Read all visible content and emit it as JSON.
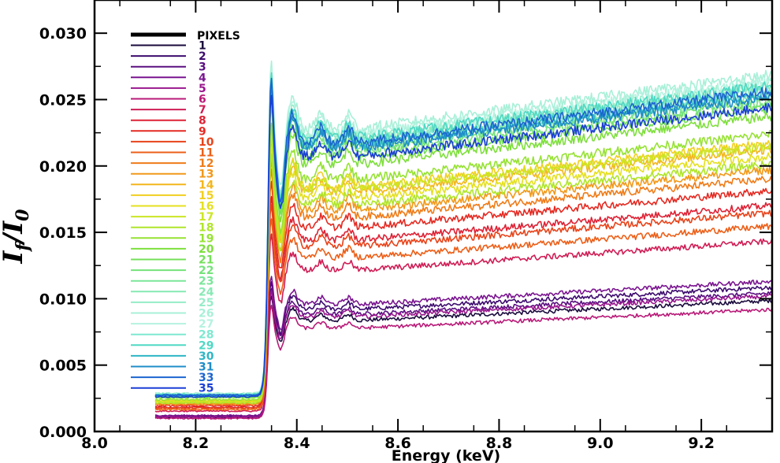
{
  "chart_data": {
    "type": "line",
    "title": "",
    "xlabel": "Energy (keV)",
    "ylabel": "If/I0",
    "ylabel_parts": {
      "base1": "I",
      "sub1": "f",
      "slash": "/",
      "base2": "I",
      "sub2": "0"
    },
    "xlim": [
      8.0,
      9.34
    ],
    "ylim": [
      0.0,
      0.0325
    ],
    "xticks": [
      8.0,
      8.2,
      8.4,
      8.6,
      8.8,
      9.0,
      9.2
    ],
    "xtick_labels": [
      "8.0",
      "8.2",
      "8.4",
      "8.6",
      "8.8",
      "9.0",
      "9.2"
    ],
    "yticks": [
      0.0,
      0.005,
      0.01,
      0.015,
      0.02,
      0.025,
      0.03
    ],
    "ytick_labels": [
      "0.000",
      "0.005",
      "0.010",
      "0.015",
      "0.020",
      "0.025",
      "0.030"
    ],
    "legend": {
      "title": "PIXELS",
      "position": "top-left",
      "entries": [
        {
          "label": "1",
          "color": "#1a0a3c"
        },
        {
          "label": "2",
          "color": "#3d0b6e"
        },
        {
          "label": "3",
          "color": "#5a1080"
        },
        {
          "label": "4",
          "color": "#7a1590"
        },
        {
          "label": "5",
          "color": "#99178e"
        },
        {
          "label": "6",
          "color": "#b81a78"
        },
        {
          "label": "7",
          "color": "#cf1d55"
        },
        {
          "label": "8",
          "color": "#dd2235"
        },
        {
          "label": "9",
          "color": "#e42a22"
        },
        {
          "label": "10",
          "color": "#e8431a"
        },
        {
          "label": "11",
          "color": "#ec5f18"
        },
        {
          "label": "12",
          "color": "#ef7c18"
        },
        {
          "label": "13",
          "color": "#f1991a"
        },
        {
          "label": "14",
          "color": "#f3b61c"
        },
        {
          "label": "15",
          "color": "#f1cf1e"
        },
        {
          "label": "16",
          "color": "#e4e020"
        },
        {
          "label": "17",
          "color": "#cbe624"
        },
        {
          "label": "18",
          "color": "#b0e52a"
        },
        {
          "label": "19",
          "color": "#96e232"
        },
        {
          "label": "20",
          "color": "#7edf3c"
        },
        {
          "label": "21",
          "color": "#74e05a"
        },
        {
          "label": "22",
          "color": "#74e37a"
        },
        {
          "label": "23",
          "color": "#7ae69a"
        },
        {
          "label": "24",
          "color": "#86e9b4"
        },
        {
          "label": "25",
          "color": "#96ecc8"
        },
        {
          "label": "26",
          "color": "#a8f0d8"
        },
        {
          "label": "27",
          "color": "#b5f2e0"
        },
        {
          "label": "28",
          "color": "#7ee8d0"
        },
        {
          "label": "29",
          "color": "#4fd8c4"
        },
        {
          "label": "30",
          "color": "#2fb6c4"
        },
        {
          "label": "31",
          "color": "#208cc8"
        },
        {
          "label": "33",
          "color": "#1c64d0"
        },
        {
          "label": "35",
          "color": "#1b3fd6"
        }
      ]
    },
    "model": {
      "edge_energy": 8.343,
      "white_line_energy": 8.348,
      "minimum_energy": 8.368,
      "oscillation_peaks_energy": [
        8.392,
        8.448,
        8.502
      ],
      "pre_edge_level_fraction": 0.12,
      "peak_scale_fraction": 1.25,
      "minimum_level_fraction": 0.76,
      "post_edge_level_fraction": 0.95,
      "end_level_fraction": 1.12,
      "noise_fraction": 0.012
    },
    "series": [
      {
        "name": "1",
        "color": "#1a0a3c",
        "post_edge_level": 0.0088
      },
      {
        "name": "2",
        "color": "#3d0b6e",
        "post_edge_level": 0.0097
      },
      {
        "name": "3",
        "color": "#5a1080",
        "post_edge_level": 0.0093
      },
      {
        "name": "4",
        "color": "#7a1590",
        "post_edge_level": 0.0101
      },
      {
        "name": "5",
        "color": "#99178e",
        "post_edge_level": 0.0091
      },
      {
        "name": "6",
        "color": "#b81a78",
        "post_edge_level": 0.0082
      },
      {
        "name": "7",
        "color": "#cf1d55",
        "post_edge_level": 0.0128
      },
      {
        "name": "8",
        "color": "#dd2235",
        "post_edge_level": 0.0152
      },
      {
        "name": "9",
        "color": "#e42a22",
        "post_edge_level": 0.0162
      },
      {
        "name": "10",
        "color": "#e8431a",
        "post_edge_level": 0.0147
      },
      {
        "name": "11",
        "color": "#ec5f18",
        "post_edge_level": 0.0138
      },
      {
        "name": "12",
        "color": "#ef7c18",
        "post_edge_level": 0.017
      },
      {
        "name": "13",
        "color": "#f1991a",
        "post_edge_level": 0.0176
      },
      {
        "name": "14",
        "color": "#f3b61c",
        "post_edge_level": 0.019
      },
      {
        "name": "15",
        "color": "#f1cf1e",
        "post_edge_level": 0.0194
      },
      {
        "name": "16",
        "color": "#e4e020",
        "post_edge_level": 0.0185
      },
      {
        "name": "17",
        "color": "#cbe624",
        "post_edge_level": 0.0192
      },
      {
        "name": "18",
        "color": "#b0e52a",
        "post_edge_level": 0.018
      },
      {
        "name": "19",
        "color": "#96e232",
        "post_edge_level": 0.02
      },
      {
        "name": "20",
        "color": "#7edf3c",
        "post_edge_level": 0.0212
      },
      {
        "name": "21",
        "color": "#74e05a",
        "post_edge_level": 0.0218
      },
      {
        "name": "22",
        "color": "#74e37a",
        "post_edge_level": 0.0222
      },
      {
        "name": "23",
        "color": "#7ae69a",
        "post_edge_level": 0.0226
      },
      {
        "name": "24",
        "color": "#86e9b4",
        "post_edge_level": 0.0231
      },
      {
        "name": "25",
        "color": "#96ecc8",
        "post_edge_level": 0.0234
      },
      {
        "name": "26",
        "color": "#a8f0d8",
        "post_edge_level": 0.024
      },
      {
        "name": "27",
        "color": "#b5f2e0",
        "post_edge_level": 0.0236
      },
      {
        "name": "28",
        "color": "#7ee8d0",
        "post_edge_level": 0.0229
      },
      {
        "name": "29",
        "color": "#4fd8c4",
        "post_edge_level": 0.0233
      },
      {
        "name": "30",
        "color": "#2fb6c4",
        "post_edge_level": 0.0227
      },
      {
        "name": "31",
        "color": "#208cc8",
        "post_edge_level": 0.0225
      },
      {
        "name": "33",
        "color": "#1c64d0",
        "post_edge_level": 0.0229
      },
      {
        "name": "35",
        "color": "#1b3fd6",
        "post_edge_level": 0.0218
      }
    ]
  }
}
